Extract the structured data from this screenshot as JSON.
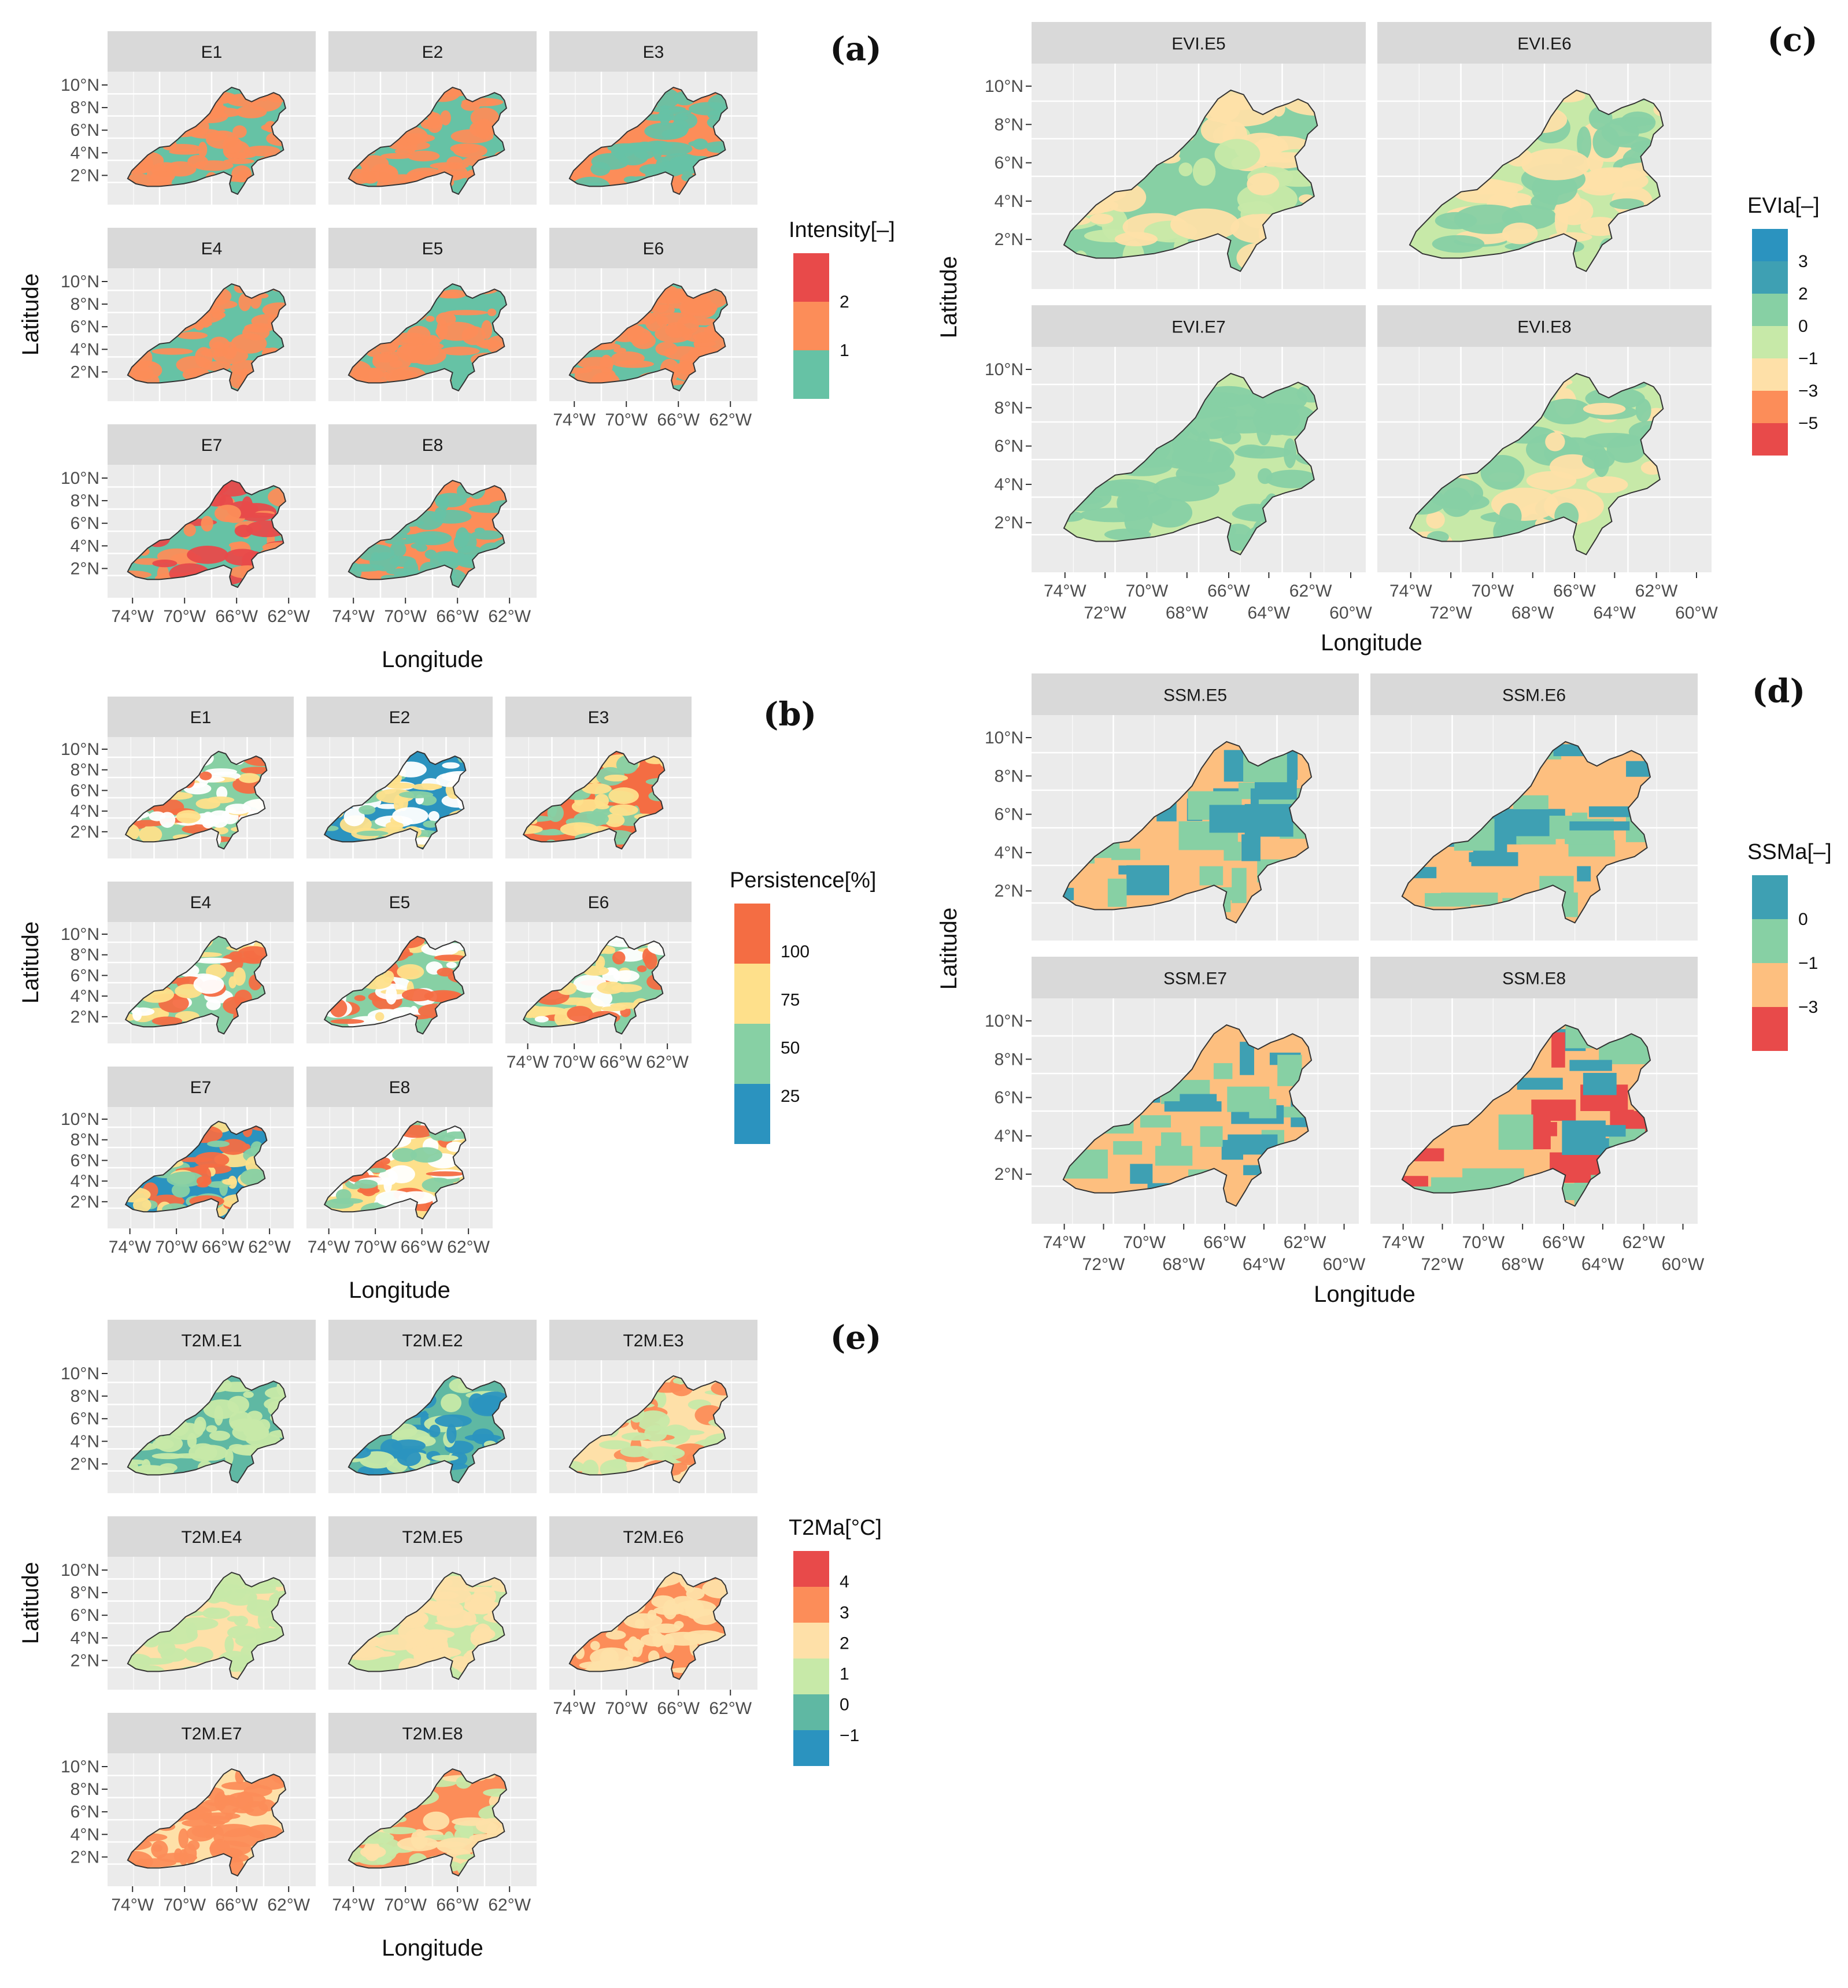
{
  "palettes": {
    "teal": "#66c2a5",
    "coral": "#fc8d59",
    "red": "#e84a4a",
    "cream": "#fee08b",
    "paleGreen": "#c7e9a8",
    "mint": "#87d0a4",
    "blue": "#2b93bf",
    "tealBlue": "#3ea0b3",
    "deepTeal": "#4fb3a0",
    "panelBg": "#ebebeb",
    "stripBg": "#d9d9d9",
    "outline": "#333333"
  },
  "panels": [
    {
      "tag": "(a)",
      "ylabel": "Latitude",
      "xlabel": "Longitude",
      "yticks": [
        "10°N",
        "8°N",
        "6°N",
        "4°N",
        "2°N"
      ],
      "xticks": [
        "74°W",
        "70°W",
        "66°W",
        "62°W"
      ],
      "facets": [
        "E1",
        "E2",
        "E3",
        "E4",
        "E5",
        "E6",
        "E7",
        "E8"
      ],
      "legend": {
        "title": "Intensity[–]",
        "labels": [
          "2",
          "1"
        ],
        "colors": [
          "#e84a4a",
          "#fc8d59",
          "#66c2a5"
        ]
      },
      "facet_mix": [
        [
          "#66c2a5",
          "#fc8d59"
        ],
        [
          "#66c2a5",
          "#fc8d59"
        ],
        [
          "#fc8d59",
          "#66c2a5"
        ],
        [
          "#66c2a5",
          "#fc8d59"
        ],
        [
          "#66c2a5",
          "#fc8d59"
        ],
        [
          "#66c2a5",
          "#fc8d59"
        ],
        [
          "#66c2a5",
          "#fc8d59",
          "#e84a4a"
        ],
        [
          "#fc8d59",
          "#66c2a5"
        ]
      ]
    },
    {
      "tag": "(b)",
      "ylabel": "Latitude",
      "xlabel": "Longitude",
      "yticks": [
        "10°N",
        "8°N",
        "6°N",
        "4°N",
        "2°N"
      ],
      "xticks": [
        "74°W",
        "70°W",
        "66°W",
        "62°W"
      ],
      "facets": [
        "E1",
        "E2",
        "E3",
        "E4",
        "E5",
        "E6",
        "E7",
        "E8"
      ],
      "legend": {
        "title": "Persistence[%]",
        "labels": [
          "100",
          "75",
          "50",
          "25"
        ],
        "colors": [
          "#f46d43",
          "#fee08b",
          "#87d0a4",
          "#2b93bf"
        ]
      },
      "facet_mix": [
        [
          "#87d0a4",
          "#fee08b",
          "#ffffff",
          "#f46d43"
        ],
        [
          "#2b93bf",
          "#87d0a4",
          "#fee08b",
          "#ffffff"
        ],
        [
          "#f46d43",
          "#fee08b",
          "#87d0a4"
        ],
        [
          "#87d0a4",
          "#fee08b",
          "#ffffff",
          "#f46d43"
        ],
        [
          "#87d0a4",
          "#fee08b",
          "#ffffff",
          "#f46d43"
        ],
        [
          "#87d0a4",
          "#fee08b",
          "#f46d43",
          "#ffffff"
        ],
        [
          "#2b93bf",
          "#87d0a4",
          "#fee08b",
          "#f46d43"
        ],
        [
          "#fee08b",
          "#87d0a4",
          "#f46d43",
          "#ffffff"
        ]
      ]
    },
    {
      "tag": "(c)",
      "ylabel": "Latitude",
      "xlabel": "Longitude",
      "yticks": [
        "10°N",
        "8°N",
        "6°N",
        "4°N",
        "2°N"
      ],
      "xticks_major": [
        "74°W",
        "70°W",
        "66°W",
        "62°W"
      ],
      "xticks_minor": [
        "72°W",
        "68°W",
        "64°W",
        "60°W"
      ],
      "facets": [
        "EVI.E5",
        "EVI.E6",
        "EVI.E7",
        "EVI.E8"
      ],
      "legend": {
        "title": "EVIa[–]",
        "labels": [
          "3",
          "2",
          "0",
          "−1",
          "−3",
          "−5"
        ],
        "colors": [
          "#2b93bf",
          "#3ea0b3",
          "#87d0a4",
          "#c7e9a8",
          "#fee0a8",
          "#fc8d59",
          "#e84a4a"
        ]
      },
      "facet_mix": [
        [
          "#87d0a4",
          "#c7e9a8",
          "#fee0a8"
        ],
        [
          "#c7e9a8",
          "#87d0a4",
          "#fee0a8"
        ],
        [
          "#c7e9a8",
          "#87d0a4"
        ],
        [
          "#c7e9a8",
          "#87d0a4",
          "#fee0a8"
        ]
      ]
    },
    {
      "tag": "(d)",
      "ylabel": "Latitude",
      "xlabel": "Longitude",
      "yticks": [
        "10°N",
        "8°N",
        "6°N",
        "4°N",
        "2°N"
      ],
      "xticks_major": [
        "74°W",
        "70°W",
        "66°W",
        "62°W"
      ],
      "xticks_minor": [
        "72°W",
        "68°W",
        "64°W",
        "60°W"
      ],
      "facets": [
        "SSM.E5",
        "SSM.E6",
        "SSM.E7",
        "SSM.E8"
      ],
      "legend": {
        "title": "SSMa[–]",
        "labels": [
          "0",
          "−1",
          "−3"
        ],
        "colors": [
          "#3ea0b3",
          "#87d0a4",
          "#fdbf7f",
          "#e84a4a"
        ]
      },
      "facet_mix": [
        [
          "#fdbf7f",
          "#3ea0b3",
          "#87d0a4"
        ],
        [
          "#fdbf7f",
          "#3ea0b3",
          "#87d0a4"
        ],
        [
          "#fdbf7f",
          "#87d0a4",
          "#3ea0b3"
        ],
        [
          "#fdbf7f",
          "#87d0a4",
          "#3ea0b3",
          "#e84a4a"
        ]
      ]
    },
    {
      "tag": "(e)",
      "ylabel": "Latitude",
      "xlabel": "Longitude",
      "yticks": [
        "10°N",
        "8°N",
        "6°N",
        "4°N",
        "2°N"
      ],
      "xticks": [
        "74°W",
        "70°W",
        "66°W",
        "62°W"
      ],
      "facets": [
        "T2M.E1",
        "T2M.E2",
        "T2M.E3",
        "T2M.E4",
        "T2M.E5",
        "T2M.E6",
        "T2M.E7",
        "T2M.E8"
      ],
      "legend": {
        "title": "T2Ma[°C]",
        "labels": [
          "4",
          "3",
          "2",
          "1",
          "0",
          "−1"
        ],
        "colors": [
          "#e84a4a",
          "#fc8d59",
          "#fee0a8",
          "#c7e9a8",
          "#5fb8a3",
          "#2b93bf"
        ]
      },
      "facet_mix": [
        [
          "#5fb8a3",
          "#c7e9a8"
        ],
        [
          "#5fb8a3",
          "#c7e9a8",
          "#2b93bf"
        ],
        [
          "#fee0a8",
          "#c7e9a8",
          "#fc8d59"
        ],
        [
          "#fee0a8",
          "#c7e9a8"
        ],
        [
          "#c7e9a8",
          "#fee0a8"
        ],
        [
          "#fc8d59",
          "#fee0a8"
        ],
        [
          "#fee0a8",
          "#fc8d59"
        ],
        [
          "#fc8d59",
          "#fee0a8",
          "#c7e9a8"
        ]
      ]
    }
  ]
}
